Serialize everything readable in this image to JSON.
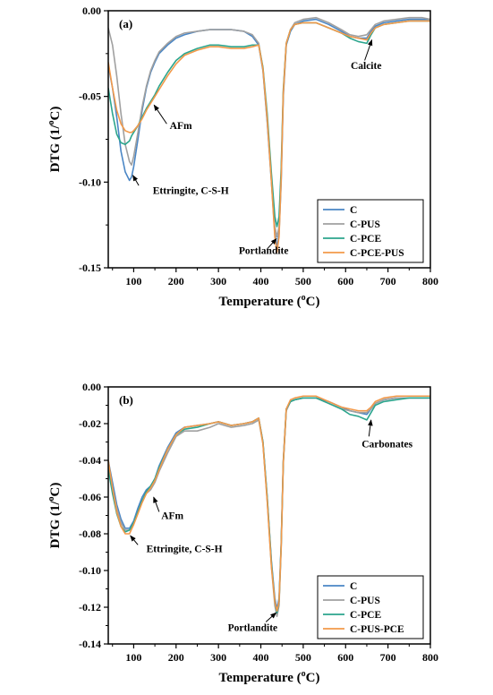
{
  "chart_data": [
    {
      "type": "line",
      "panel_label": "(a)",
      "xlabel": "Temperature (",
      "xlabel_sup": "o",
      "xlabel_tail": "C)",
      "ylabel": "DTG (1/",
      "ylabel_sup": "o",
      "ylabel_tail": "C)",
      "xlim": [
        40,
        800
      ],
      "ylim": [
        -0.15,
        0.0
      ],
      "xticks": [
        100,
        200,
        300,
        400,
        500,
        600,
        700,
        800
      ],
      "yticks": [
        0.0,
        -0.05,
        -0.1,
        -0.15
      ],
      "ytick_labels": [
        "0.00",
        "-0.05",
        "-0.10",
        "-0.15"
      ],
      "grid": false,
      "legend_position": "bottom-right",
      "annotations": [
        {
          "text": "Ettringite, C-S-H",
          "label_at": [
            145,
            -0.107
          ],
          "arrow_to": [
            98,
            -0.096
          ],
          "arrow_from": [
            112,
            -0.102
          ]
        },
        {
          "text": "AFm",
          "label_at": [
            185,
            -0.069
          ],
          "arrow_to": [
            148,
            -0.055
          ],
          "arrow_from": [
            178,
            -0.066
          ]
        },
        {
          "text": "Portlandite",
          "label_at": [
            348,
            -0.142
          ],
          "arrow_to": [
            437,
            -0.133
          ],
          "arrow_from": [
            415,
            -0.139
          ]
        },
        {
          "text": "Calcite",
          "label_at": [
            612,
            -0.034
          ],
          "arrow_to": [
            662,
            -0.017
          ],
          "arrow_from": [
            645,
            -0.029
          ]
        }
      ],
      "series": [
        {
          "name": "C",
          "color": "#4a86c5",
          "x": [
            40,
            50,
            60,
            70,
            80,
            90,
            95,
            100,
            110,
            120,
            130,
            140,
            150,
            160,
            180,
            200,
            220,
            250,
            280,
            300,
            330,
            360,
            380,
            395,
            405,
            415,
            425,
            433,
            438,
            443,
            448,
            453,
            460,
            470,
            480,
            500,
            530,
            560,
            590,
            610,
            630,
            650,
            660,
            670,
            690,
            720,
            750,
            780,
            800
          ],
          "y": [
            -0.032,
            -0.045,
            -0.062,
            -0.082,
            -0.094,
            -0.099,
            -0.097,
            -0.091,
            -0.075,
            -0.058,
            -0.045,
            -0.036,
            -0.03,
            -0.025,
            -0.02,
            -0.016,
            -0.014,
            -0.012,
            -0.011,
            -0.011,
            -0.011,
            -0.012,
            -0.015,
            -0.02,
            -0.035,
            -0.065,
            -0.1,
            -0.13,
            -0.138,
            -0.13,
            -0.1,
            -0.05,
            -0.02,
            -0.012,
            -0.008,
            -0.006,
            -0.005,
            -0.008,
            -0.012,
            -0.015,
            -0.016,
            -0.016,
            -0.012,
            -0.009,
            -0.007,
            -0.006,
            -0.005,
            -0.005,
            -0.005
          ]
        },
        {
          "name": "C-PUS",
          "color": "#a0a0a0",
          "x": [
            40,
            50,
            60,
            70,
            80,
            90,
            95,
            100,
            110,
            120,
            130,
            140,
            150,
            160,
            180,
            200,
            220,
            250,
            280,
            300,
            330,
            360,
            380,
            395,
            405,
            415,
            425,
            433,
            438,
            443,
            448,
            453,
            460,
            470,
            480,
            500,
            530,
            560,
            590,
            610,
            630,
            650,
            660,
            670,
            690,
            720,
            750,
            780,
            800
          ],
          "y": [
            -0.01,
            -0.02,
            -0.038,
            -0.06,
            -0.078,
            -0.088,
            -0.09,
            -0.085,
            -0.071,
            -0.056,
            -0.044,
            -0.035,
            -0.029,
            -0.024,
            -0.019,
            -0.015,
            -0.013,
            -0.012,
            -0.011,
            -0.011,
            -0.011,
            -0.012,
            -0.014,
            -0.019,
            -0.034,
            -0.064,
            -0.098,
            -0.126,
            -0.132,
            -0.126,
            -0.096,
            -0.048,
            -0.019,
            -0.011,
            -0.007,
            -0.005,
            -0.004,
            -0.007,
            -0.011,
            -0.014,
            -0.015,
            -0.014,
            -0.011,
            -0.008,
            -0.006,
            -0.005,
            -0.004,
            -0.004,
            -0.005
          ]
        },
        {
          "name": "C-PCE",
          "color": "#2ca58d",
          "x": [
            40,
            50,
            60,
            70,
            80,
            90,
            95,
            100,
            110,
            120,
            130,
            140,
            150,
            160,
            180,
            200,
            220,
            250,
            280,
            300,
            330,
            360,
            380,
            395,
            405,
            415,
            425,
            433,
            438,
            443,
            448,
            453,
            460,
            470,
            480,
            500,
            530,
            560,
            590,
            610,
            630,
            650,
            660,
            670,
            690,
            720,
            750,
            780,
            800
          ],
          "y": [
            -0.045,
            -0.06,
            -0.072,
            -0.077,
            -0.078,
            -0.076,
            -0.073,
            -0.071,
            -0.067,
            -0.062,
            -0.057,
            -0.053,
            -0.049,
            -0.044,
            -0.036,
            -0.029,
            -0.025,
            -0.022,
            -0.02,
            -0.02,
            -0.021,
            -0.021,
            -0.02,
            -0.02,
            -0.033,
            -0.06,
            -0.095,
            -0.12,
            -0.126,
            -0.12,
            -0.092,
            -0.046,
            -0.019,
            -0.011,
            -0.008,
            -0.007,
            -0.007,
            -0.01,
            -0.013,
            -0.016,
            -0.018,
            -0.019,
            -0.014,
            -0.01,
            -0.008,
            -0.007,
            -0.006,
            -0.006,
            -0.006
          ]
        },
        {
          "name": "C-PCE-PUS",
          "color": "#f2994a",
          "x": [
            40,
            50,
            60,
            70,
            80,
            90,
            95,
            100,
            110,
            120,
            130,
            140,
            150,
            160,
            180,
            200,
            220,
            250,
            280,
            300,
            330,
            360,
            380,
            395,
            405,
            415,
            425,
            433,
            438,
            443,
            448,
            453,
            460,
            470,
            480,
            500,
            530,
            560,
            590,
            610,
            630,
            650,
            660,
            670,
            690,
            720,
            750,
            780,
            800
          ],
          "y": [
            -0.03,
            -0.045,
            -0.058,
            -0.066,
            -0.07,
            -0.071,
            -0.071,
            -0.07,
            -0.067,
            -0.063,
            -0.058,
            -0.054,
            -0.05,
            -0.046,
            -0.038,
            -0.031,
            -0.026,
            -0.023,
            -0.021,
            -0.021,
            -0.022,
            -0.022,
            -0.021,
            -0.02,
            -0.034,
            -0.063,
            -0.1,
            -0.132,
            -0.141,
            -0.132,
            -0.098,
            -0.048,
            -0.019,
            -0.011,
            -0.008,
            -0.007,
            -0.007,
            -0.01,
            -0.013,
            -0.015,
            -0.016,
            -0.017,
            -0.013,
            -0.01,
            -0.008,
            -0.007,
            -0.006,
            -0.006,
            -0.006
          ]
        }
      ]
    },
    {
      "type": "line",
      "panel_label": "(b)",
      "xlabel": "Temperature (",
      "xlabel_sup": "o",
      "xlabel_tail": "C)",
      "ylabel": "DTG (1/",
      "ylabel_sup": "o",
      "ylabel_tail": "C)",
      "xlim": [
        40,
        800
      ],
      "ylim": [
        -0.14,
        0.0
      ],
      "xticks": [
        100,
        200,
        300,
        400,
        500,
        600,
        700,
        800
      ],
      "yticks": [
        0.0,
        -0.02,
        -0.04,
        -0.06,
        -0.08,
        -0.1,
        -0.12,
        -0.14
      ],
      "ytick_labels": [
        "0.00",
        "-0.02",
        "-0.04",
        "-0.06",
        "-0.08",
        "-0.10",
        "-0.12",
        "-0.14"
      ],
      "grid": false,
      "legend_position": "bottom-right",
      "annotations": [
        {
          "text": "Ettringite, C-S-H",
          "label_at": [
            130,
            -0.09
          ],
          "arrow_to": [
            92,
            -0.081
          ],
          "arrow_from": [
            110,
            -0.086
          ]
        },
        {
          "text": "AFm",
          "label_at": [
            165,
            -0.072
          ],
          "arrow_to": [
            147,
            -0.06
          ],
          "arrow_from": [
            160,
            -0.068
          ]
        },
        {
          "text": "Portlandite",
          "label_at": [
            322,
            -0.133
          ],
          "arrow_to": [
            436,
            -0.123
          ],
          "arrow_from": [
            412,
            -0.128
          ]
        },
        {
          "text": "Carbonates",
          "label_at": [
            638,
            -0.033
          ],
          "arrow_to": [
            660,
            -0.018
          ],
          "arrow_from": [
            655,
            -0.027
          ]
        }
      ],
      "series": [
        {
          "name": "C",
          "color": "#4a86c5",
          "x": [
            40,
            50,
            60,
            70,
            80,
            90,
            100,
            110,
            120,
            130,
            140,
            150,
            160,
            180,
            200,
            220,
            250,
            280,
            300,
            330,
            360,
            380,
            395,
            405,
            415,
            425,
            433,
            438,
            443,
            448,
            453,
            460,
            470,
            480,
            500,
            530,
            560,
            590,
            610,
            630,
            650,
            660,
            670,
            690,
            720,
            750,
            780,
            800
          ],
          "y": [
            -0.04,
            -0.052,
            -0.064,
            -0.072,
            -0.077,
            -0.077,
            -0.073,
            -0.066,
            -0.06,
            -0.056,
            -0.054,
            -0.05,
            -0.043,
            -0.033,
            -0.025,
            -0.022,
            -0.021,
            -0.02,
            -0.019,
            -0.021,
            -0.02,
            -0.019,
            -0.017,
            -0.03,
            -0.06,
            -0.095,
            -0.115,
            -0.121,
            -0.115,
            -0.085,
            -0.04,
            -0.012,
            -0.008,
            -0.007,
            -0.006,
            -0.006,
            -0.008,
            -0.011,
            -0.013,
            -0.014,
            -0.015,
            -0.012,
            -0.009,
            -0.007,
            -0.006,
            -0.006,
            -0.006,
            -0.006
          ]
        },
        {
          "name": "C-PUS",
          "color": "#a0a0a0",
          "x": [
            40,
            50,
            60,
            70,
            80,
            90,
            100,
            110,
            120,
            130,
            140,
            150,
            160,
            180,
            200,
            220,
            250,
            280,
            300,
            330,
            360,
            380,
            395,
            405,
            415,
            425,
            433,
            438,
            443,
            448,
            453,
            460,
            470,
            480,
            500,
            530,
            560,
            590,
            610,
            630,
            650,
            660,
            670,
            690,
            720,
            750,
            780,
            800
          ],
          "y": [
            -0.042,
            -0.055,
            -0.066,
            -0.074,
            -0.078,
            -0.078,
            -0.074,
            -0.068,
            -0.062,
            -0.058,
            -0.056,
            -0.052,
            -0.046,
            -0.036,
            -0.027,
            -0.024,
            -0.024,
            -0.022,
            -0.02,
            -0.022,
            -0.021,
            -0.02,
            -0.018,
            -0.031,
            -0.062,
            -0.098,
            -0.119,
            -0.125,
            -0.119,
            -0.088,
            -0.042,
            -0.013,
            -0.008,
            -0.007,
            -0.006,
            -0.006,
            -0.009,
            -0.012,
            -0.013,
            -0.014,
            -0.014,
            -0.012,
            -0.009,
            -0.007,
            -0.006,
            -0.006,
            -0.006,
            -0.006
          ]
        },
        {
          "name": "C-PCE",
          "color": "#2ca58d",
          "x": [
            40,
            50,
            60,
            70,
            80,
            90,
            100,
            110,
            120,
            130,
            140,
            150,
            160,
            180,
            200,
            220,
            250,
            280,
            300,
            330,
            360,
            380,
            395,
            405,
            415,
            425,
            433,
            438,
            443,
            448,
            453,
            460,
            470,
            480,
            500,
            530,
            560,
            590,
            610,
            630,
            650,
            660,
            670,
            690,
            720,
            750,
            780,
            800
          ],
          "y": [
            -0.045,
            -0.058,
            -0.069,
            -0.076,
            -0.079,
            -0.078,
            -0.074,
            -0.068,
            -0.062,
            -0.057,
            -0.054,
            -0.05,
            -0.044,
            -0.034,
            -0.026,
            -0.023,
            -0.022,
            -0.02,
            -0.019,
            -0.021,
            -0.02,
            -0.019,
            -0.017,
            -0.03,
            -0.06,
            -0.096,
            -0.117,
            -0.123,
            -0.117,
            -0.086,
            -0.041,
            -0.012,
            -0.008,
            -0.007,
            -0.006,
            -0.006,
            -0.009,
            -0.012,
            -0.015,
            -0.016,
            -0.018,
            -0.014,
            -0.01,
            -0.008,
            -0.007,
            -0.006,
            -0.006,
            -0.006
          ]
        },
        {
          "name": "C-PUS-PCE",
          "color": "#f2994a",
          "x": [
            40,
            50,
            60,
            70,
            80,
            90,
            100,
            110,
            120,
            130,
            140,
            150,
            160,
            180,
            200,
            220,
            250,
            280,
            300,
            330,
            360,
            380,
            395,
            405,
            415,
            425,
            433,
            438,
            443,
            448,
            453,
            460,
            470,
            480,
            500,
            530,
            560,
            590,
            610,
            630,
            650,
            660,
            670,
            690,
            720,
            750,
            780,
            800
          ],
          "y": [
            -0.04,
            -0.055,
            -0.068,
            -0.076,
            -0.08,
            -0.08,
            -0.075,
            -0.069,
            -0.063,
            -0.058,
            -0.055,
            -0.051,
            -0.045,
            -0.034,
            -0.026,
            -0.022,
            -0.021,
            -0.02,
            -0.019,
            -0.021,
            -0.02,
            -0.019,
            -0.017,
            -0.031,
            -0.062,
            -0.098,
            -0.117,
            -0.122,
            -0.117,
            -0.087,
            -0.041,
            -0.012,
            -0.007,
            -0.006,
            -0.005,
            -0.005,
            -0.008,
            -0.011,
            -0.012,
            -0.013,
            -0.013,
            -0.011,
            -0.008,
            -0.006,
            -0.005,
            -0.005,
            -0.005,
            -0.005
          ]
        }
      ]
    }
  ]
}
